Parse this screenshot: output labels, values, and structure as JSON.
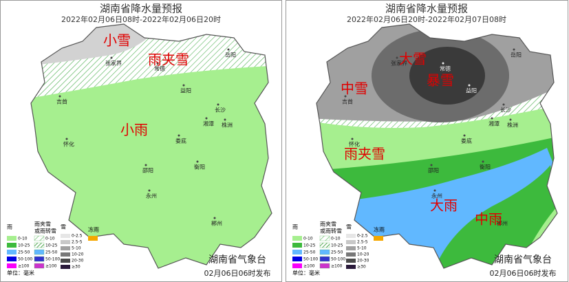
{
  "panels": [
    {
      "title": "湖南省降水量预报",
      "subtitle": "2022年02月06日08时-2022年02月06日20时",
      "zones": [
        "小雪",
        "雨夹雪",
        "小雨"
      ],
      "issuer": "湖南省气象台",
      "issue_time": "02月06日06时发布"
    },
    {
      "title": "湖南省降水量预报",
      "subtitle": "2022年02月06日20时-2022年02月07日08时",
      "zones": [
        "大雪",
        "暴雪",
        "中雪",
        "雨夹雪",
        "大雨",
        "中雨"
      ],
      "issuer": "湖南省气象台",
      "issue_time": "02月06日06时发布"
    }
  ],
  "cities": [
    "张家界",
    "常德",
    "岳阳",
    "吉首",
    "益阳",
    "长沙",
    "湘潭",
    "株洲",
    "怀化",
    "娄底",
    "邵阳",
    "衡阳",
    "永州",
    "郴州"
  ],
  "legend": {
    "rain_header": "雨",
    "sleet_header": [
      "雨夹雪",
      "或雨转雪"
    ],
    "snow_header": "雪",
    "freezing_header": "冻雨",
    "rain_levels": [
      "0-10",
      "10-25",
      "25-50",
      "50-100",
      "≥100"
    ],
    "sleet_levels": [
      "0-10",
      "10-25",
      "25-50",
      "50-100",
      "≥100"
    ],
    "snow_levels": [
      "0-2.5",
      "2.5-5",
      "5-10",
      "10-20",
      "20-30",
      "≥30"
    ],
    "unit": "单位：毫米"
  }
}
